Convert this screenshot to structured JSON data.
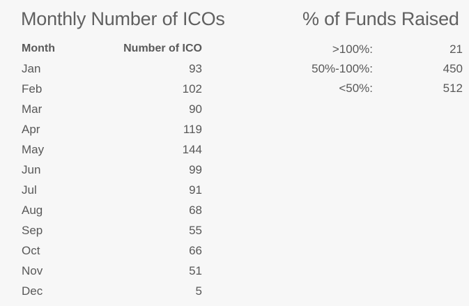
{
  "ico_section": {
    "title": "Monthly Number of ICOs",
    "header": {
      "month": "Month",
      "count": "Number of ICO"
    },
    "rows": [
      {
        "month": "Jan",
        "count": "93"
      },
      {
        "month": "Feb",
        "count": "102"
      },
      {
        "month": "Mar",
        "count": "90"
      },
      {
        "month": "Apr",
        "count": "119"
      },
      {
        "month": "May",
        "count": "144"
      },
      {
        "month": "Jun",
        "count": "99"
      },
      {
        "month": "Jul",
        "count": "91"
      },
      {
        "month": "Aug",
        "count": "68"
      },
      {
        "month": "Sep",
        "count": "55"
      },
      {
        "month": "Oct",
        "count": "66"
      },
      {
        "month": "Nov",
        "count": "51"
      },
      {
        "month": "Dec",
        "count": "5"
      }
    ]
  },
  "funds_section": {
    "title": "% of Funds Raised",
    "rows": [
      {
        "label": ">100%:",
        "value": "21"
      },
      {
        "label": "50%-100%:",
        "value": "450"
      },
      {
        "label": "<50%:",
        "value": "512"
      }
    ]
  }
}
